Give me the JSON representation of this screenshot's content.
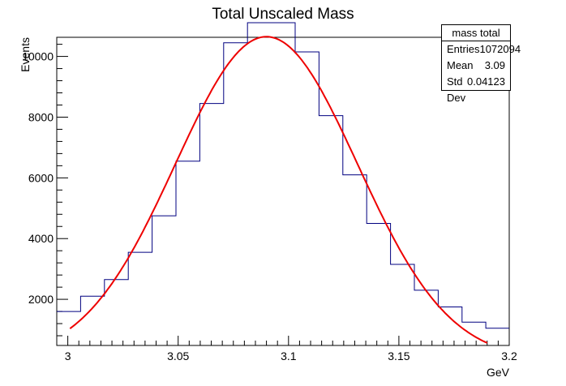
{
  "chart_data": {
    "type": "histogram",
    "title": "Total Unscaled Mass",
    "xlabel": "GeV",
    "ylabel": "Events",
    "xlim": [
      2.995,
      3.2
    ],
    "ylim": [
      480,
      10630
    ],
    "x_ticks": [
      "3",
      "3.05",
      "3.1",
      "3.15",
      "3.2"
    ],
    "x_tick_values": [
      3.0,
      3.05,
      3.1,
      3.15,
      3.2
    ],
    "y_ticks": [
      "2000",
      "4000",
      "6000",
      "8000",
      "10000"
    ],
    "y_tick_values": [
      2000,
      4000,
      6000,
      8000,
      10000
    ],
    "bin_edges": [
      2.995,
      3.0058,
      3.0166,
      3.0274,
      3.0382,
      3.049,
      3.0598,
      3.0706,
      3.0814,
      3.0922,
      3.103,
      3.1138,
      3.1246,
      3.1354,
      3.1462,
      3.157,
      3.1678,
      3.1786,
      3.1894,
      3.2
    ],
    "bin_counts": [
      1600,
      2100,
      2650,
      3550,
      4750,
      6550,
      8450,
      10450,
      11550,
      11700,
      10150,
      8050,
      6100,
      4500,
      3150,
      2300,
      1750,
      1250,
      1050
    ],
    "fit_curve": {
      "type": "gaussian",
      "peak": 10650,
      "mean": 3.09,
      "sigma": 0.04123,
      "x_range": [
        3.001,
        3.19
      ]
    },
    "series": [
      {
        "name": "",
        "kind": "histogram",
        "color": "#000080"
      },
      {
        "name": "",
        "kind": "fit",
        "color": "#ee0000"
      }
    ],
    "stats": {
      "title": "mass total",
      "entries_label": "Entries",
      "entries_value": "1072094",
      "mean_label": "Mean",
      "mean_value": "3.09",
      "stddev_label": "Std Dev",
      "stddev_value": "0.04123"
    }
  }
}
